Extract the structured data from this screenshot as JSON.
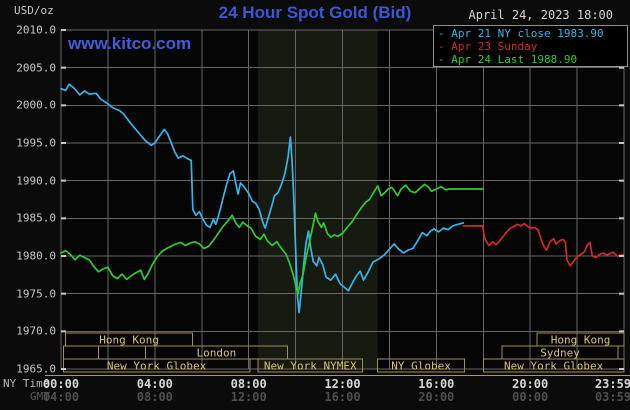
{
  "header": {
    "units_label": "USD/oz",
    "title": "24 Hour Spot Gold (Bid)",
    "datetime": "April 24, 2023 18:00",
    "watermark": "www.kitco.com"
  },
  "legend": {
    "items": [
      {
        "dash": "-",
        "label": "Apr 21 NY close 1983.90",
        "color": "#35b6ea"
      },
      {
        "dash": "-",
        "label": "Apr 23 Sunday",
        "color": "#d42a25"
      },
      {
        "dash": "-",
        "label": "Apr 24 Last 1988.90",
        "color": "#2ecc2e"
      }
    ]
  },
  "axes": {
    "ny_time_label": "NY Time",
    "gmt_label": "GMT"
  },
  "chart_data": {
    "type": "line",
    "title": "24 Hour Spot Gold (Bid)",
    "y_axis": {
      "label": "USD/oz",
      "range": [
        1965,
        2010
      ],
      "tick_step": 5,
      "ticks": [
        "2010.0",
        "2005.0",
        "2000.0",
        "1995.0",
        "1990.0",
        "1985.0",
        "1980.0",
        "1975.0",
        "1970.0",
        "1965.0"
      ]
    },
    "x_axis": {
      "range_hours": [
        0,
        24
      ],
      "gridline_every_hours": 2,
      "tick_hours": [
        0,
        4,
        8,
        12,
        16,
        20,
        23.983
      ],
      "rows": [
        {
          "name": "NY Time",
          "ticks": [
            "00:00",
            "04:00",
            "08:00",
            "12:00",
            "16:00",
            "20:00",
            "23:59"
          ]
        },
        {
          "name": "GMT",
          "ticks": [
            "04:00",
            "08:00",
            "12:00",
            "16:00",
            "20:00",
            "00:00",
            "03:59"
          ]
        }
      ]
    },
    "highlight_band_hours": [
      8.4,
      13.5
    ],
    "colors": {
      "plot_bg": "#050505",
      "band_bg": "#161a10",
      "grid": "#666666",
      "tick": "#c8c8c8",
      "session_border": "#9e9050",
      "session_text": "#d9c46c",
      "baseline": "#a89a5a"
    },
    "series": [
      {
        "name": "Apr 21 NY close",
        "close": 1983.9,
        "color": "#35b6ea",
        "points": [
          [
            0,
            2002.2
          ],
          [
            0.2,
            2002.0
          ],
          [
            0.35,
            2002.8
          ],
          [
            0.55,
            2002.3
          ],
          [
            0.8,
            2001.4
          ],
          [
            1.0,
            2001.9
          ],
          [
            1.2,
            2001.5
          ],
          [
            1.5,
            2001.6
          ],
          [
            1.7,
            2000.8
          ],
          [
            2.0,
            2000.2
          ],
          [
            2.2,
            1999.7
          ],
          [
            2.5,
            1999.3
          ],
          [
            2.65,
            1998.9
          ],
          [
            2.8,
            1998.3
          ],
          [
            3.0,
            1997.5
          ],
          [
            3.3,
            1996.4
          ],
          [
            3.6,
            1995.3
          ],
          [
            3.85,
            1994.7
          ],
          [
            4.0,
            1995.0
          ],
          [
            4.2,
            1995.9
          ],
          [
            4.4,
            1996.8
          ],
          [
            4.55,
            1996.2
          ],
          [
            4.7,
            1995.0
          ],
          [
            4.85,
            1993.8
          ],
          [
            5.0,
            1993.0
          ],
          [
            5.2,
            1993.3
          ],
          [
            5.4,
            1992.9
          ],
          [
            5.55,
            1992.7
          ],
          [
            5.62,
            1986.2
          ],
          [
            5.75,
            1985.4
          ],
          [
            5.9,
            1985.9
          ],
          [
            6.05,
            1984.9
          ],
          [
            6.2,
            1984.1
          ],
          [
            6.35,
            1983.8
          ],
          [
            6.5,
            1984.9
          ],
          [
            6.6,
            1984.2
          ],
          [
            6.75,
            1985.7
          ],
          [
            6.9,
            1987.6
          ],
          [
            7.05,
            1989.4
          ],
          [
            7.2,
            1990.9
          ],
          [
            7.35,
            1991.3
          ],
          [
            7.45,
            1989.6
          ],
          [
            7.55,
            1988.2
          ],
          [
            7.65,
            1989.7
          ],
          [
            7.8,
            1989.2
          ],
          [
            8.0,
            1988.3
          ],
          [
            8.15,
            1987.3
          ],
          [
            8.3,
            1987.0
          ],
          [
            8.45,
            1986.2
          ],
          [
            8.6,
            1984.5
          ],
          [
            8.7,
            1983.7
          ],
          [
            8.85,
            1985.2
          ],
          [
            9.0,
            1986.8
          ],
          [
            9.1,
            1988.0
          ],
          [
            9.25,
            1988.4
          ],
          [
            9.4,
            1989.5
          ],
          [
            9.55,
            1991.0
          ],
          [
            9.68,
            1993.2
          ],
          [
            9.78,
            1995.8
          ],
          [
            9.85,
            1992.5
          ],
          [
            9.92,
            1988.0
          ],
          [
            10.0,
            1981.0
          ],
          [
            10.08,
            1974.5
          ],
          [
            10.15,
            1972.5
          ],
          [
            10.25,
            1975.5
          ],
          [
            10.35,
            1979.0
          ],
          [
            10.45,
            1981.8
          ],
          [
            10.55,
            1983.3
          ],
          [
            10.65,
            1981.0
          ],
          [
            10.75,
            1979.3
          ],
          [
            10.9,
            1978.7
          ],
          [
            11.0,
            1979.8
          ],
          [
            11.15,
            1978.9
          ],
          [
            11.3,
            1977.2
          ],
          [
            11.5,
            1976.8
          ],
          [
            11.7,
            1977.6
          ],
          [
            11.9,
            1976.3
          ],
          [
            12.1,
            1975.8
          ],
          [
            12.25,
            1975.4
          ],
          [
            12.45,
            1976.6
          ],
          [
            12.6,
            1977.4
          ],
          [
            12.75,
            1978.0
          ],
          [
            12.9,
            1976.8
          ],
          [
            13.1,
            1977.9
          ],
          [
            13.3,
            1979.2
          ],
          [
            13.55,
            1979.6
          ],
          [
            13.8,
            1980.2
          ],
          [
            14.0,
            1980.9
          ],
          [
            14.2,
            1981.6
          ],
          [
            14.4,
            1980.9
          ],
          [
            14.6,
            1980.4
          ],
          [
            14.8,
            1980.8
          ],
          [
            15.0,
            1981.0
          ],
          [
            15.2,
            1982.0
          ],
          [
            15.4,
            1983.1
          ],
          [
            15.6,
            1982.7
          ],
          [
            15.75,
            1983.3
          ],
          [
            15.9,
            1983.6
          ],
          [
            16.1,
            1983.2
          ],
          [
            16.3,
            1983.7
          ],
          [
            16.5,
            1983.5
          ],
          [
            16.7,
            1984.0
          ],
          [
            16.9,
            1984.2
          ],
          [
            17.05,
            1984.3
          ],
          [
            17.15,
            1984.4
          ]
        ]
      },
      {
        "name": "Apr 23 Sunday",
        "color": "#d42a25",
        "points": [
          [
            17.15,
            1984.0
          ],
          [
            17.98,
            1984.0
          ],
          [
            18.05,
            1982.4
          ],
          [
            18.15,
            1981.8
          ],
          [
            18.25,
            1981.4
          ],
          [
            18.4,
            1981.9
          ],
          [
            18.55,
            1981.5
          ],
          [
            18.7,
            1982.0
          ],
          [
            18.85,
            1982.6
          ],
          [
            19.0,
            1983.2
          ],
          [
            19.15,
            1983.7
          ],
          [
            19.3,
            1983.9
          ],
          [
            19.45,
            1984.2
          ],
          [
            19.6,
            1984.0
          ],
          [
            19.75,
            1984.3
          ],
          [
            19.9,
            1983.9
          ],
          [
            20.05,
            1983.7
          ],
          [
            20.2,
            1983.8
          ],
          [
            20.35,
            1983.4
          ],
          [
            20.5,
            1981.9
          ],
          [
            20.6,
            1981.2
          ],
          [
            20.7,
            1980.8
          ],
          [
            20.85,
            1981.9
          ],
          [
            21.0,
            1982.3
          ],
          [
            21.1,
            1981.6
          ],
          [
            21.25,
            1982.0
          ],
          [
            21.4,
            1982.2
          ],
          [
            21.5,
            1981.8
          ],
          [
            21.57,
            1979.5
          ],
          [
            21.7,
            1978.7
          ],
          [
            21.85,
            1979.3
          ],
          [
            22.0,
            1979.9
          ],
          [
            22.15,
            1980.2
          ],
          [
            22.3,
            1980.5
          ],
          [
            22.45,
            1981.5
          ],
          [
            22.55,
            1981.8
          ],
          [
            22.65,
            1980.0
          ],
          [
            22.8,
            1979.8
          ],
          [
            22.95,
            1980.2
          ],
          [
            23.1,
            1980.4
          ],
          [
            23.25,
            1980.1
          ],
          [
            23.4,
            1980.3
          ],
          [
            23.55,
            1980.5
          ],
          [
            23.7,
            1980.0
          ],
          [
            23.85,
            1980.1
          ],
          [
            23.98,
            1980.2
          ]
        ]
      },
      {
        "name": "Apr 24 Last",
        "last": 1988.9,
        "color": "#2ecc2e",
        "points": [
          [
            0,
            1980.4
          ],
          [
            0.2,
            1980.7
          ],
          [
            0.4,
            1980.2
          ],
          [
            0.6,
            1979.5
          ],
          [
            0.8,
            1980.1
          ],
          [
            1.0,
            1979.8
          ],
          [
            1.2,
            1979.5
          ],
          [
            1.4,
            1978.6
          ],
          [
            1.6,
            1977.9
          ],
          [
            1.8,
            1978.3
          ],
          [
            2.0,
            1978.5
          ],
          [
            2.2,
            1977.4
          ],
          [
            2.4,
            1977.0
          ],
          [
            2.6,
            1977.6
          ],
          [
            2.8,
            1976.9
          ],
          [
            3.0,
            1977.4
          ],
          [
            3.2,
            1977.8
          ],
          [
            3.4,
            1978.1
          ],
          [
            3.55,
            1976.9
          ],
          [
            3.7,
            1977.6
          ],
          [
            3.9,
            1978.9
          ],
          [
            4.1,
            1979.9
          ],
          [
            4.3,
            1980.6
          ],
          [
            4.5,
            1981.0
          ],
          [
            4.7,
            1981.3
          ],
          [
            4.9,
            1981.6
          ],
          [
            5.1,
            1981.8
          ],
          [
            5.3,
            1981.4
          ],
          [
            5.5,
            1981.7
          ],
          [
            5.7,
            1981.9
          ],
          [
            5.9,
            1981.6
          ],
          [
            6.1,
            1981.0
          ],
          [
            6.3,
            1981.3
          ],
          [
            6.5,
            1982.1
          ],
          [
            6.7,
            1983.0
          ],
          [
            6.9,
            1983.9
          ],
          [
            7.1,
            1984.6
          ],
          [
            7.3,
            1985.4
          ],
          [
            7.45,
            1984.4
          ],
          [
            7.6,
            1983.8
          ],
          [
            7.75,
            1984.5
          ],
          [
            7.9,
            1984.1
          ],
          [
            8.1,
            1983.7
          ],
          [
            8.3,
            1982.6
          ],
          [
            8.5,
            1982.2
          ],
          [
            8.65,
            1982.9
          ],
          [
            8.8,
            1982.0
          ],
          [
            9.0,
            1981.4
          ],
          [
            9.2,
            1981.9
          ],
          [
            9.4,
            1981.0
          ],
          [
            9.6,
            1980.2
          ],
          [
            9.75,
            1979.0
          ],
          [
            9.9,
            1977.5
          ],
          [
            10.0,
            1976.2
          ],
          [
            10.1,
            1974.9
          ],
          [
            10.2,
            1976.5
          ],
          [
            10.3,
            1977.3
          ],
          [
            10.45,
            1979.8
          ],
          [
            10.6,
            1982.0
          ],
          [
            10.75,
            1984.2
          ],
          [
            10.85,
            1985.7
          ],
          [
            10.95,
            1984.6
          ],
          [
            11.1,
            1983.8
          ],
          [
            11.2,
            1984.4
          ],
          [
            11.35,
            1983.0
          ],
          [
            11.5,
            1982.5
          ],
          [
            11.65,
            1982.8
          ],
          [
            11.8,
            1982.6
          ],
          [
            12.0,
            1983.0
          ],
          [
            12.2,
            1983.8
          ],
          [
            12.4,
            1984.5
          ],
          [
            12.6,
            1985.5
          ],
          [
            12.8,
            1986.4
          ],
          [
            13.0,
            1987.2
          ],
          [
            13.15,
            1987.5
          ],
          [
            13.3,
            1988.3
          ],
          [
            13.5,
            1989.3
          ],
          [
            13.65,
            1988.0
          ],
          [
            13.8,
            1988.4
          ],
          [
            13.95,
            1988.9
          ],
          [
            14.1,
            1989.1
          ],
          [
            14.35,
            1988.0
          ],
          [
            14.5,
            1988.9
          ],
          [
            14.7,
            1989.4
          ],
          [
            14.9,
            1988.6
          ],
          [
            15.1,
            1988.4
          ],
          [
            15.3,
            1989.0
          ],
          [
            15.5,
            1989.5
          ],
          [
            15.65,
            1989.2
          ],
          [
            15.8,
            1988.6
          ],
          [
            16.0,
            1988.9
          ],
          [
            16.2,
            1989.2
          ],
          [
            16.4,
            1988.8
          ],
          [
            16.55,
            1988.9
          ],
          [
            18.0,
            1988.9
          ]
        ]
      }
    ],
    "sessions": {
      "rows": [
        [
          {
            "from": 0.2,
            "to": 5.6,
            "label": "Hong Kong"
          },
          {
            "from": 20.3,
            "to": 24,
            "label": "Hong Kong"
          }
        ],
        [
          {
            "from": 0.1,
            "to": 1.6,
            "label": ""
          },
          {
            "from": 1.6,
            "to": 3.6,
            "label": ""
          },
          {
            "from": 3.6,
            "to": 9.65,
            "label": "London"
          },
          {
            "from": 18.8,
            "to": 23.75,
            "label": "Sydney"
          }
        ],
        [
          {
            "from": 0.1,
            "to": 8.05,
            "label": "New York Globex"
          },
          {
            "from": 8.4,
            "to": 12.85,
            "label": "New York NYMEX"
          },
          {
            "from": 13.5,
            "to": 17.2,
            "label": "NY Globex"
          },
          {
            "from": 18.0,
            "to": 24,
            "label": "New York Globex"
          }
        ]
      ]
    }
  }
}
